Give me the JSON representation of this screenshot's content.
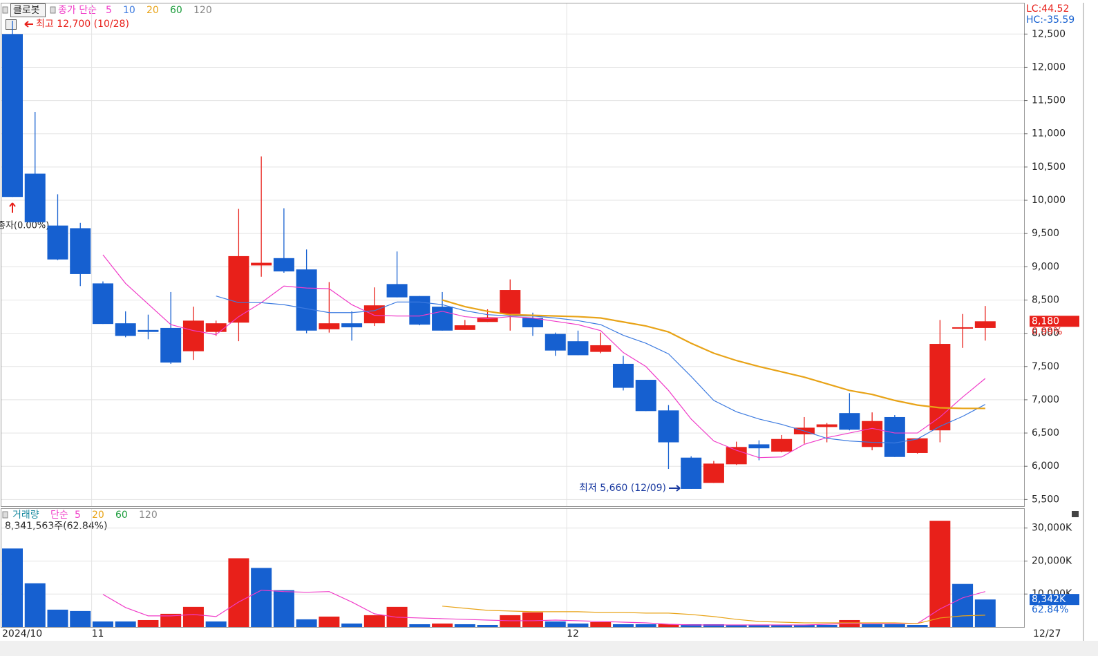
{
  "chart_data": {
    "type": "candlestick",
    "title": "클로봇",
    "legend_label": "종가 단순",
    "categories": [
      "2024/10",
      null,
      null,
      null,
      "11",
      null,
      null,
      null,
      null,
      null,
      null,
      null,
      null,
      null,
      null,
      null,
      null,
      null,
      null,
      null,
      null,
      null,
      null,
      null,
      null,
      "12",
      null,
      null,
      null,
      null,
      null,
      null,
      null,
      null,
      null,
      null,
      null,
      null,
      null,
      null,
      null,
      null,
      null,
      "12/27"
    ],
    "open": [
      12500,
      10400,
      9620,
      9580,
      8750,
      8150,
      8050,
      8080,
      7730,
      8020,
      8160,
      9020,
      9130,
      8960,
      8060,
      8150,
      8150,
      8740,
      8560,
      8400,
      8050,
      8170,
      8290,
      8230,
      7990,
      7880,
      7720,
      7540,
      7300,
      6840,
      6130,
      5750,
      6030,
      6330,
      6220,
      6480,
      6590,
      6800,
      6290,
      6740,
      6200,
      6540,
      8080,
      8080
    ],
    "high": [
      12700,
      11330,
      10090,
      9660,
      8780,
      8330,
      8280,
      8620,
      8400,
      8190,
      9870,
      10660,
      9880,
      9260,
      8770,
      8330,
      8690,
      9230,
      8560,
      8620,
      8200,
      8360,
      8810,
      8310,
      8010,
      8040,
      8010,
      7660,
      7300,
      6920,
      6150,
      6080,
      6370,
      6390,
      6470,
      6740,
      6650,
      7100,
      6810,
      6770,
      6420,
      8200,
      8290,
      8410
    ],
    "low": [
      10050,
      9670,
      9100,
      8710,
      8140,
      7940,
      7910,
      7540,
      7600,
      7960,
      7880,
      8850,
      8910,
      8000,
      8010,
      7890,
      8110,
      8540,
      8120,
      8040,
      8050,
      8170,
      8040,
      7960,
      7660,
      7670,
      7700,
      7140,
      6830,
      5960,
      5660,
      5750,
      6020,
      6090,
      6210,
      6340,
      6360,
      6540,
      6240,
      6140,
      6190,
      6360,
      7780,
      7890
    ],
    "close": [
      10050,
      9670,
      9110,
      8890,
      8140,
      7960,
      8020,
      7560,
      8190,
      8150,
      9160,
      9060,
      8930,
      8040,
      8150,
      8090,
      8420,
      8540,
      8130,
      8040,
      8120,
      8240,
      8650,
      8090,
      7740,
      7670,
      7820,
      7180,
      6830,
      6360,
      5660,
      6040,
      6290,
      6270,
      6410,
      6580,
      6630,
      6550,
      6680,
      6140,
      6420,
      7840,
      8090,
      8180
    ],
    "up_color": "#e8201a",
    "down_color": "#1660d0",
    "ma_series": [
      {
        "name": "5",
        "color": "#f03cc8",
        "values": [
          null,
          null,
          null,
          null,
          9180,
          8750,
          8440,
          8130,
          8040,
          7980,
          8250,
          8460,
          8710,
          8680,
          8670,
          8430,
          8270,
          8260,
          8260,
          8330,
          8250,
          8220,
          8250,
          8230,
          8180,
          8130,
          8040,
          7710,
          7500,
          7140,
          6710,
          6380,
          6240,
          6130,
          6140,
          6330,
          6430,
          6500,
          6570,
          6500,
          6500,
          6740,
          7040,
          7320
        ]
      },
      {
        "name": "10",
        "color": "#3d7be0",
        "values": [
          null,
          null,
          null,
          null,
          null,
          null,
          null,
          null,
          null,
          8560,
          8460,
          8460,
          8430,
          8370,
          8310,
          8310,
          8340,
          8470,
          8470,
          8430,
          8340,
          8280,
          8260,
          8260,
          8230,
          8190,
          8130,
          7970,
          7850,
          7690,
          7350,
          6990,
          6820,
          6710,
          6630,
          6530,
          6420,
          6380,
          6360,
          6350,
          6410,
          6600,
          6750,
          6930
        ]
      },
      {
        "name": "20",
        "color": "#e8a317",
        "values": [
          null,
          null,
          null,
          null,
          null,
          null,
          null,
          null,
          null,
          null,
          null,
          null,
          null,
          null,
          null,
          null,
          null,
          null,
          null,
          8500,
          8400,
          8330,
          8280,
          8270,
          8260,
          8250,
          8230,
          8170,
          8110,
          8020,
          7850,
          7700,
          7590,
          7500,
          7420,
          7340,
          7240,
          7140,
          7080,
          6990,
          6920,
          6880,
          6870,
          6870
        ]
      },
      {
        "name": "60",
        "color": "#1a9c3a"
      },
      {
        "name": "120",
        "color": "#888888"
      }
    ],
    "ylim": [
      5400,
      12960
    ],
    "yticks": [
      {
        "value": 5500,
        "label": "5,500"
      },
      {
        "value": 6000,
        "label": "6,000"
      },
      {
        "value": 6500,
        "label": "6,500"
      },
      {
        "value": 7000,
        "label": "7,000"
      },
      {
        "value": 7500,
        "label": "7,500"
      },
      {
        "value": 8000,
        "label": "8,000"
      },
      {
        "value": 8500,
        "label": "8,500"
      },
      {
        "value": 9000,
        "label": "9,000"
      },
      {
        "value": 9500,
        "label": "9,500"
      },
      {
        "value": 10000,
        "label": "10,000"
      },
      {
        "value": 10500,
        "label": "10,500"
      },
      {
        "value": 11000,
        "label": "11,000"
      },
      {
        "value": 11500,
        "label": "11,500"
      },
      {
        "value": 12000,
        "label": "12,000"
      },
      {
        "value": 12500,
        "label": "12,500"
      }
    ],
    "grid": true,
    "max_annotation": "최고 12,700 (10/28)",
    "min_annotation": "최저 5,660 (12/09)",
    "first_note": "종자(0.00%)",
    "lc": "LC:44.52",
    "hc": "HC:-35.59",
    "last_price": {
      "value": 8180,
      "label": "8,180"
    },
    "change_label": "0.99%",
    "volume": {
      "title": "거래량",
      "legend_label": "단순",
      "values": [
        23800,
        13260,
        5260,
        4840,
        1680,
        1680,
        2100,
        4000,
        6100,
        1680,
        20840,
        17900,
        11160,
        2320,
        3160,
        1050,
        3580,
        6100,
        840,
        1050,
        840,
        630,
        3580,
        4420,
        1680,
        1050,
        1470,
        840,
        840,
        860,
        840,
        840,
        630,
        630,
        630,
        630,
        630,
        2100,
        840,
        840,
        630,
        32210,
        13050,
        8342
      ],
      "ma_series": [
        {
          "name": "5",
          "color": "#f03cc8",
          "values": [
            null,
            null,
            null,
            null,
            9900,
            5900,
            3370,
            3370,
            3790,
            3160,
            7580,
            11160,
            10740,
            10530,
            10740,
            7580,
            4000,
            2950,
            2740,
            2530,
            2320,
            2100,
            1900,
            1900,
            2100,
            1900,
            1680,
            1470,
            1260,
            840,
            630,
            630,
            630,
            630,
            630,
            630,
            840,
            1050,
            1050,
            1050,
            1050,
            5470,
            8840,
            10740
          ]
        },
        {
          "name": "20",
          "color": "#e8a317",
          "values": [
            null,
            null,
            null,
            null,
            null,
            null,
            null,
            null,
            null,
            null,
            null,
            null,
            null,
            null,
            null,
            null,
            null,
            null,
            null,
            6320,
            5680,
            5050,
            4840,
            4630,
            4630,
            4630,
            4420,
            4420,
            4210,
            4210,
            3790,
            3160,
            2320,
            1680,
            1470,
            1260,
            1260,
            1260,
            1260,
            1260,
            1050,
            2740,
            3370,
            3580
          ]
        },
        {
          "name": "60",
          "color": "#1a9c3a"
        },
        {
          "name": "120",
          "color": "#888888"
        }
      ],
      "ylim": [
        0,
        35800
      ],
      "yticks": [
        {
          "value": 10000,
          "label": "10,000K"
        },
        {
          "value": 20000,
          "label": "20,000K"
        },
        {
          "value": 30000,
          "label": "30,000K"
        }
      ],
      "summary": "8,341,563주(62.84%)",
      "last": {
        "value": 8342,
        "label": "8,342K"
      },
      "ratio_label": "62.84%"
    }
  }
}
